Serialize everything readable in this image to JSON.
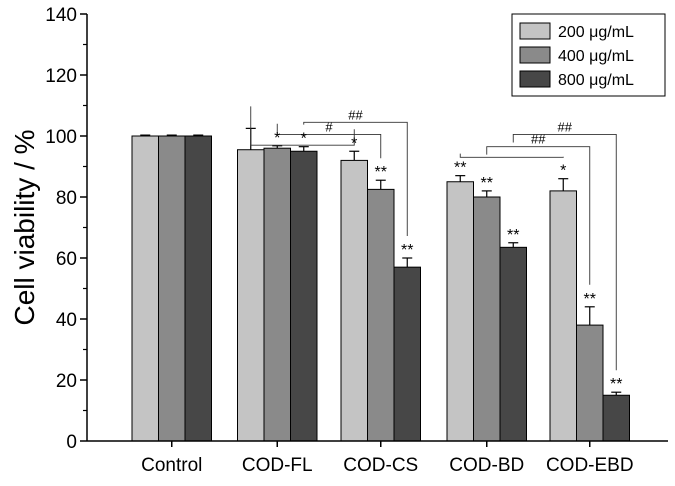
{
  "chart_data": {
    "type": "bar",
    "ylabel": "Cell viability / %",
    "xlabel": "",
    "ylim": [
      0,
      140
    ],
    "yticks": [
      0,
      20,
      40,
      60,
      80,
      100,
      120,
      140
    ],
    "ytick_labels": [
      "0",
      "20",
      "40",
      "60",
      "80",
      "100",
      "120",
      "140"
    ],
    "categories": [
      "Control",
      "COD-FL",
      "COD-CS",
      "COD-BD",
      "COD-EBD"
    ],
    "series": [
      {
        "name": "200 μg/mL",
        "color": "#c4c4c4",
        "values": [
          100,
          95.5,
          92,
          85,
          82
        ],
        "errors": [
          0.3,
          7,
          3,
          2,
          4
        ],
        "labels": [
          "",
          "",
          "*",
          "**",
          "*"
        ]
      },
      {
        "name": "400 μg/mL",
        "color": "#8a8a8a",
        "values": [
          100,
          96,
          82.5,
          80,
          38
        ],
        "errors": [
          0.3,
          0.8,
          3,
          2,
          6
        ],
        "labels": [
          "",
          "*",
          "**",
          "**",
          "**"
        ]
      },
      {
        "name": "800 μg/mL",
        "color": "#474747",
        "values": [
          100,
          95,
          57,
          63.5,
          15
        ],
        "errors": [
          0.3,
          1.5,
          3,
          1.5,
          1
        ],
        "labels": [
          "",
          "*",
          "**",
          "**",
          "**"
        ]
      }
    ],
    "legend_position": "top-right",
    "brackets": [
      {
        "group": 1,
        "from_series": 0,
        "to_group": 2,
        "to_series": 0,
        "label": ""
      },
      {
        "group": 1,
        "from_series": 1,
        "to_group": 2,
        "to_series": 1,
        "label": "#"
      },
      {
        "group": 1,
        "from_series": 2,
        "to_group": 2,
        "to_series": 2,
        "label": "##"
      },
      {
        "group": 3,
        "from_series": 0,
        "to_group": 4,
        "to_series": 0,
        "label": ""
      },
      {
        "group": 3,
        "from_series": 1,
        "to_group": 4,
        "to_series": 1,
        "label": "##"
      },
      {
        "group": 3,
        "from_series": 2,
        "to_group": 4,
        "to_series": 2,
        "label": "##"
      }
    ]
  }
}
